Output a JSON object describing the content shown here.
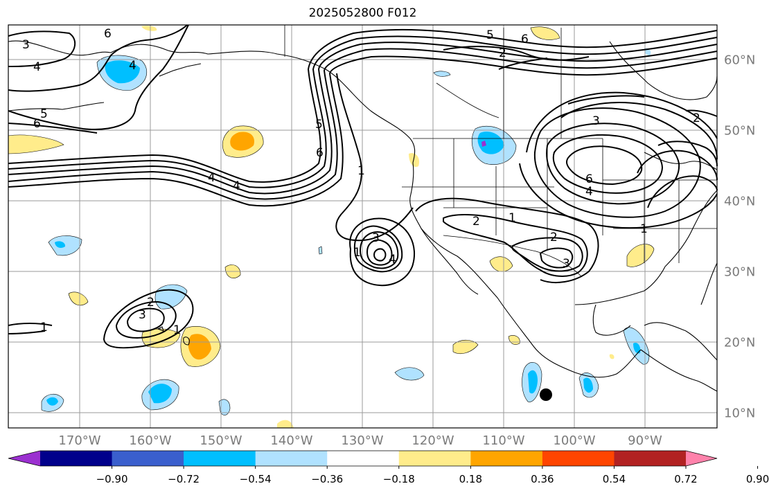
{
  "title": "2025052800 F012",
  "lon_labels": [
    "170°W",
    "160°W",
    "150°W",
    "140°W",
    "130°W",
    "120°W",
    "110°W",
    "100°W",
    "90°W"
  ],
  "lat_labels": [
    "60°N",
    "50°N",
    "40°N",
    "30°N",
    "20°N",
    "10°N"
  ],
  "colorbar": {
    "tick_labels": [
      "−0.90",
      "−0.72",
      "−0.54",
      "−0.36",
      "−0.18",
      "0.18",
      "0.36",
      "0.54",
      "0.72",
      "0.90"
    ],
    "colors": [
      "#9b30d0",
      "#00008b",
      "#3a5fcd",
      "#00bfff",
      "#b0e2ff",
      "#ffffff",
      "#ffec8b",
      "#ffa500",
      "#ff4500",
      "#b22222",
      "#ff82ab"
    ]
  },
  "contour_labels": [
    "6",
    "3",
    "4",
    "5",
    "6",
    "4",
    "4",
    "5",
    "6",
    "1",
    "4",
    "5",
    "6",
    "2",
    "3",
    "2",
    "6",
    "4",
    "1",
    "3",
    "4",
    "1",
    "2",
    "1",
    "2",
    "3",
    "2",
    "3",
    "1",
    "1",
    "3",
    "2",
    "1"
  ],
  "colors": {
    "ocean": "#ffffff",
    "land_line": "#000000",
    "grid": "#9a9a9a",
    "contour": "#000000",
    "marker": "#000000"
  }
}
